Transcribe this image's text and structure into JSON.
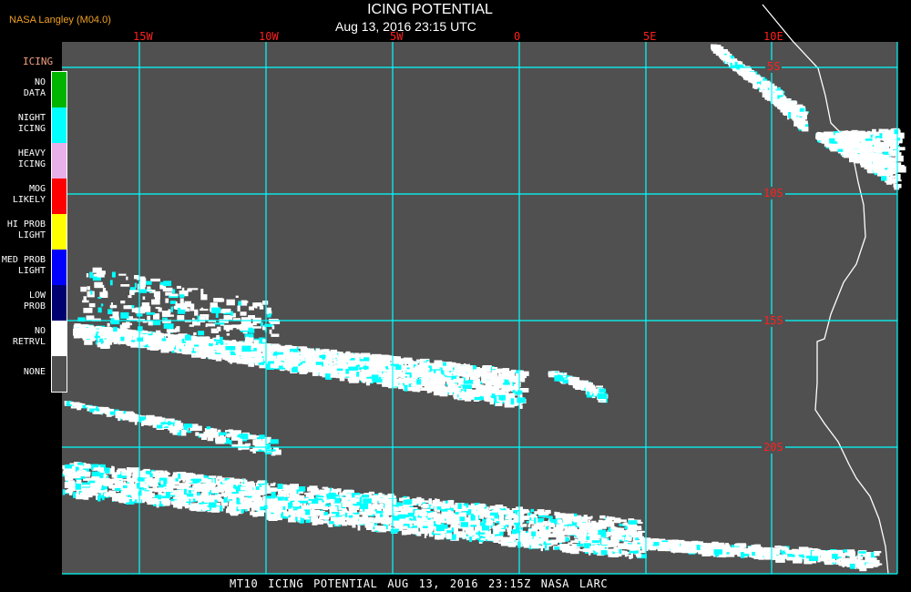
{
  "header": {
    "title": "ICING POTENTIAL",
    "timestamp": "Aug 13, 2016 23:15 UTC",
    "brand": "NASA Langley (M04.0)"
  },
  "map": {
    "longitude_labels": [
      "15W",
      "10W",
      "5W",
      "0",
      "5E",
      "10E"
    ],
    "latitude_labels": [
      "5S",
      "10S",
      "15S",
      "20S"
    ],
    "colors": {
      "background": "#505050",
      "grid": "#00ffff",
      "coastline": "#ffffff",
      "grid_label": "#ff2020"
    }
  },
  "legend": {
    "title": "ICING",
    "items": [
      {
        "label": "NO DATA",
        "color": "#00b400"
      },
      {
        "label": "NIGHT ICING",
        "color": "#00ffff"
      },
      {
        "label": "HEAVY ICING",
        "color": "#e8b0e8"
      },
      {
        "label": "MOG LIKELY",
        "color": "#ff0000"
      },
      {
        "label": "HI PROB LIGHT",
        "color": "#ffff00"
      },
      {
        "label": "MED PROB LIGHT",
        "color": "#0000ff"
      },
      {
        "label": "LOW PROB",
        "color": "#000070"
      },
      {
        "label": "NO RETRVL",
        "color": "#ffffff"
      },
      {
        "label": "NONE",
        "color": "#505050"
      }
    ]
  },
  "footer": {
    "text": "MT10  ICING POTENTIAL   AUG 13, 2016 23:15Z   NASA LARC"
  }
}
